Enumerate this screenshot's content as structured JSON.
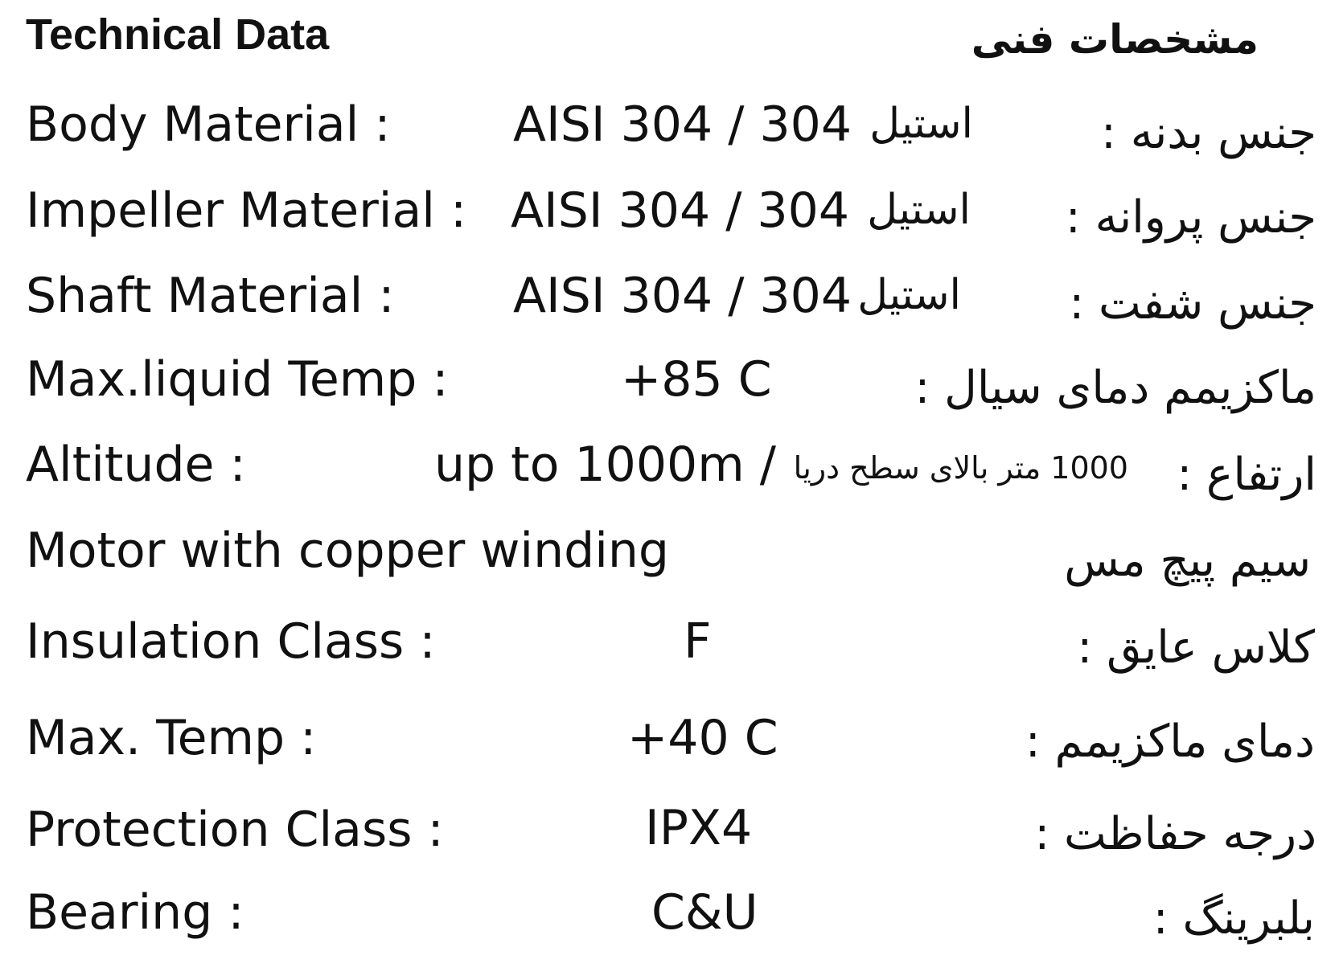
{
  "header": {
    "title_en": "Technical Data",
    "title_fa": "مشخصات فنی"
  },
  "rows": [
    {
      "label_en": "Body Material :",
      "value": "AISI 304 /  304",
      "value_fa": "استیل",
      "label_fa": "جنس بدنه  :"
    },
    {
      "label_en": "Impeller Material :",
      "value": "AISI 304 /  304",
      "value_fa": "استیل",
      "label_fa": "جنس پروانه :"
    },
    {
      "label_en": "Shaft Material :",
      "value": "AISI 304 / 304",
      "value_fa": "استیل",
      "label_fa": "جنس شفت :"
    },
    {
      "label_en": "Max.liquid Temp :",
      "value": "+85 C",
      "label_fa": "ماکزیمم دمای سیال :"
    },
    {
      "label_en": "Altitude :",
      "value": "up to 1000m /",
      "value_fa": "1000 متر بالای سطح دریا",
      "label_fa": "ارتفاع :"
    },
    {
      "label_en": "Motor with copper winding",
      "label_fa": "سیم پیچ مس"
    },
    {
      "label_en": "Insulation Class :",
      "value": "F",
      "label_fa": "کلاس عایق :"
    },
    {
      "label_en": "Max. Temp :",
      "value": "+40 C",
      "label_fa": "دمای ماکزیمم :"
    },
    {
      "label_en": "Protection Class :",
      "value": "IPX4",
      "label_fa": "درجه حفاظت :"
    },
    {
      "label_en": "Bearing :",
      "value": "C&U",
      "label_fa": "بلبرینگ :"
    }
  ]
}
